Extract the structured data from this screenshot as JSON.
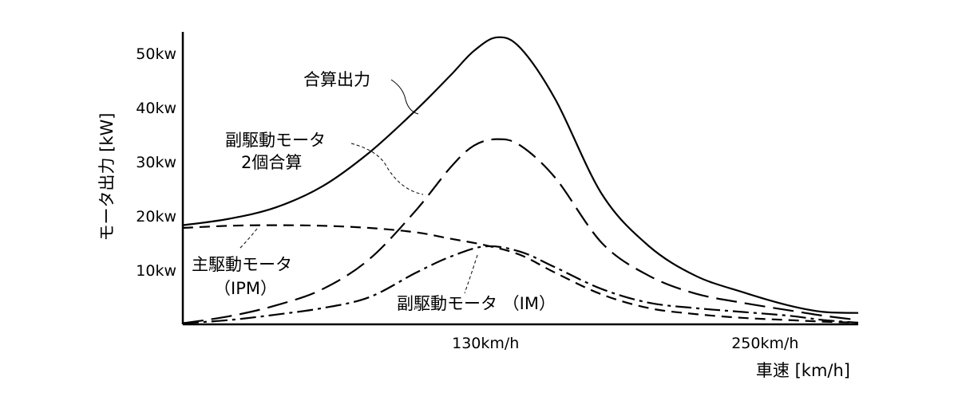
{
  "chart_data": {
    "type": "line",
    "title": "",
    "xlabel": "車速 [km/h]",
    "ylabel": "モータ出力 [kW]",
    "xlim": [
      0,
      290
    ],
    "ylim": [
      0,
      54
    ],
    "grid": false,
    "x_ticks": [
      {
        "value": 130,
        "label": "130km/h"
      },
      {
        "value": 250,
        "label": "250km/h"
      }
    ],
    "y_ticks": [
      {
        "value": 10,
        "label": "10kw"
      },
      {
        "value": 20,
        "label": "20kw"
      },
      {
        "value": 30,
        "label": "30kw"
      },
      {
        "value": 40,
        "label": "40kw"
      },
      {
        "value": 50,
        "label": "50kw"
      }
    ],
    "series": [
      {
        "name": "合算出力",
        "style": "solid",
        "x": [
          0,
          20,
          40,
          60,
          80,
          100,
          115,
          125,
          135,
          145,
          160,
          180,
          200,
          220,
          240,
          260,
          275,
          290
        ],
        "y": [
          18.3,
          19.5,
          21.6,
          25.5,
          31.7,
          39.5,
          46,
          50.5,
          53,
          51,
          41.5,
          24,
          14.5,
          9,
          6,
          3.5,
          2.3,
          2.1
        ]
      },
      {
        "name": "副駆動モータ 2個合算",
        "style": "longdash",
        "x": [
          0,
          20,
          40,
          60,
          80,
          100,
          115,
          125,
          135,
          145,
          160,
          180,
          200,
          220,
          240,
          260,
          275,
          290
        ],
        "y": [
          0.2,
          1.5,
          3.5,
          6.5,
          12,
          21,
          29,
          33,
          34.2,
          33,
          27,
          15,
          9,
          5.7,
          4,
          2.6,
          1.6,
          0.8
        ]
      },
      {
        "name": "主駆動モータ （IPM）",
        "style": "dash",
        "x": [
          0,
          20,
          40,
          60,
          80,
          100,
          115,
          130,
          145,
          160,
          180,
          200,
          220,
          240,
          260,
          275,
          290
        ],
        "y": [
          17.8,
          18.2,
          18.3,
          18.2,
          17.8,
          17,
          15.8,
          14.6,
          12.8,
          9.5,
          5.5,
          3,
          1.9,
          1.2,
          0.8,
          0.5,
          0.3
        ]
      },
      {
        "name": "副駆動モータ （IM）",
        "style": "dashdot",
        "x": [
          0,
          20,
          40,
          60,
          80,
          100,
          115,
          130,
          145,
          160,
          180,
          200,
          220,
          240,
          260,
          275,
          290
        ],
        "y": [
          0.2,
          0.8,
          1.8,
          3,
          5,
          9.5,
          12.5,
          14.4,
          13.4,
          10.5,
          6.5,
          4,
          3,
          2.3,
          1.6,
          0.8,
          0.3
        ]
      }
    ],
    "annotations": [
      {
        "id": "total",
        "text": "合算出力"
      },
      {
        "id": "sub2_line1",
        "text": "副駆動モータ"
      },
      {
        "id": "sub2_line2",
        "text": "2個合算"
      },
      {
        "id": "main_line1",
        "text": "主駆動モータ"
      },
      {
        "id": "main_line2",
        "text": "（IPM）"
      },
      {
        "id": "im",
        "text": "副駆動モータ （IM）"
      }
    ]
  }
}
